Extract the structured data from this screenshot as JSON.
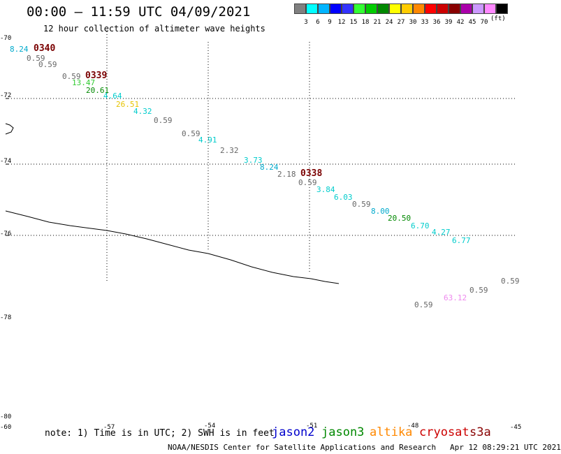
{
  "title": "00:00 – 11:59 UTC 04/09/2021",
  "subtitle": "12 hour collection of altimeter wave heights",
  "legend": {
    "colors": [
      "#808080",
      "#00ffff",
      "#00b4ff",
      "#0000ff",
      "#3333ff",
      "#33ff33",
      "#00cc00",
      "#008800",
      "#ffff00",
      "#ffcc00",
      "#ff8800",
      "#ff0000",
      "#cc0000",
      "#880000",
      "#aa00aa",
      "#cc99ff",
      "#ff88ff",
      "#000000"
    ],
    "labels": [
      "3",
      "6",
      "9",
      "12",
      "15",
      "18",
      "21",
      "24",
      "27",
      "30",
      "33",
      "36",
      "39",
      "42",
      "45",
      "70"
    ],
    "unit": "(ft)"
  },
  "lat_labels": [
    "-70",
    "-72",
    "-74",
    "-76",
    "-78",
    "-80"
  ],
  "lon_labels": [
    "-60",
    "-57",
    "-54",
    "-51",
    "-48",
    "-45"
  ],
  "tracks": [
    {
      "time": "0340",
      "values": [
        {
          "v": "8.24",
          "c": "#00aacc"
        },
        {
          "v": "0.59",
          "c": "#666666"
        },
        {
          "v": "0.59",
          "c": "#666666"
        }
      ]
    },
    {
      "time": "0339",
      "values": [
        {
          "v": "0.59",
          "c": "#666666"
        },
        {
          "v": "13.47",
          "c": "#33cc33"
        },
        {
          "v": "20.61",
          "c": "#008800"
        },
        {
          "v": "4.64",
          "c": "#00cccc"
        },
        {
          "v": "26.51",
          "c": "#e6c300"
        },
        {
          "v": "4.32",
          "c": "#00cccc"
        },
        {
          "v": "0.59",
          "c": "#666666"
        },
        {
          "v": "0.59",
          "c": "#666666"
        },
        {
          "v": "4.91",
          "c": "#00cccc"
        },
        {
          "v": "2.32",
          "c": "#666666"
        },
        {
          "v": "3.73",
          "c": "#00cccc"
        },
        {
          "v": "8.24",
          "c": "#00aacc"
        },
        {
          "v": "2.18",
          "c": "#666666"
        }
      ]
    },
    {
      "time": "0338",
      "values": [
        {
          "v": "0.59",
          "c": "#666666"
        },
        {
          "v": "3.84",
          "c": "#00cccc"
        },
        {
          "v": "6.03",
          "c": "#00cccc"
        },
        {
          "v": "0.59",
          "c": "#666666"
        },
        {
          "v": "8.00",
          "c": "#00aacc"
        },
        {
          "v": "20.50",
          "c": "#008800"
        },
        {
          "v": "6.70",
          "c": "#00cccc"
        },
        {
          "v": "4.27",
          "c": "#00cccc"
        },
        {
          "v": "6.77",
          "c": "#00cccc"
        }
      ]
    },
    {
      "time": "",
      "values": [
        {
          "v": "0.59",
          "c": "#666666"
        },
        {
          "v": "0.59",
          "c": "#666666"
        },
        {
          "v": "63.12",
          "c": "#ee88ee"
        },
        {
          "v": "0.59",
          "c": "#666666"
        }
      ]
    }
  ],
  "note": "note: 1) Time is in UTC; 2) SWH is in feet",
  "satellites": [
    {
      "name": "jason2",
      "color": "#0000cc"
    },
    {
      "name": "jason3",
      "color": "#008800"
    },
    {
      "name": "altika",
      "color": "#ff8800"
    },
    {
      "name": "cryosat",
      "color": "#cc0000"
    },
    {
      "name": "s3a",
      "color": "#880000"
    }
  ],
  "credit": "NOAA/NESDIS Center for Satellite Applications and Research   Apr 12 08:29:21 UTC 2021"
}
